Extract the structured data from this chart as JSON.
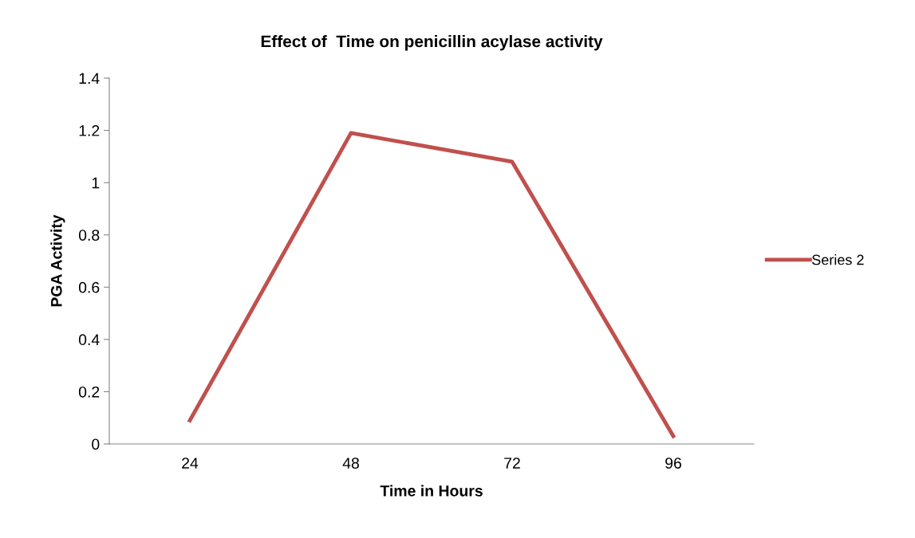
{
  "chart_data": {
    "type": "line",
    "title": "Effect of  Time on penicillin acylase activity",
    "xlabel": "Time in Hours",
    "ylabel": "PGA Activity",
    "categories": [
      "24",
      "48",
      "72",
      "96"
    ],
    "series": [
      {
        "name": "Series 2",
        "color": "#c0504d",
        "values": [
          0.09,
          1.19,
          1.08,
          0.03
        ]
      }
    ],
    "ylim": [
      0,
      1.4
    ],
    "yticks": [
      0,
      0.2,
      0.4,
      0.6,
      0.8,
      1,
      1.2,
      1.4
    ],
    "grid": false,
    "legend": "right",
    "marker": "none",
    "line_style": "solid"
  }
}
